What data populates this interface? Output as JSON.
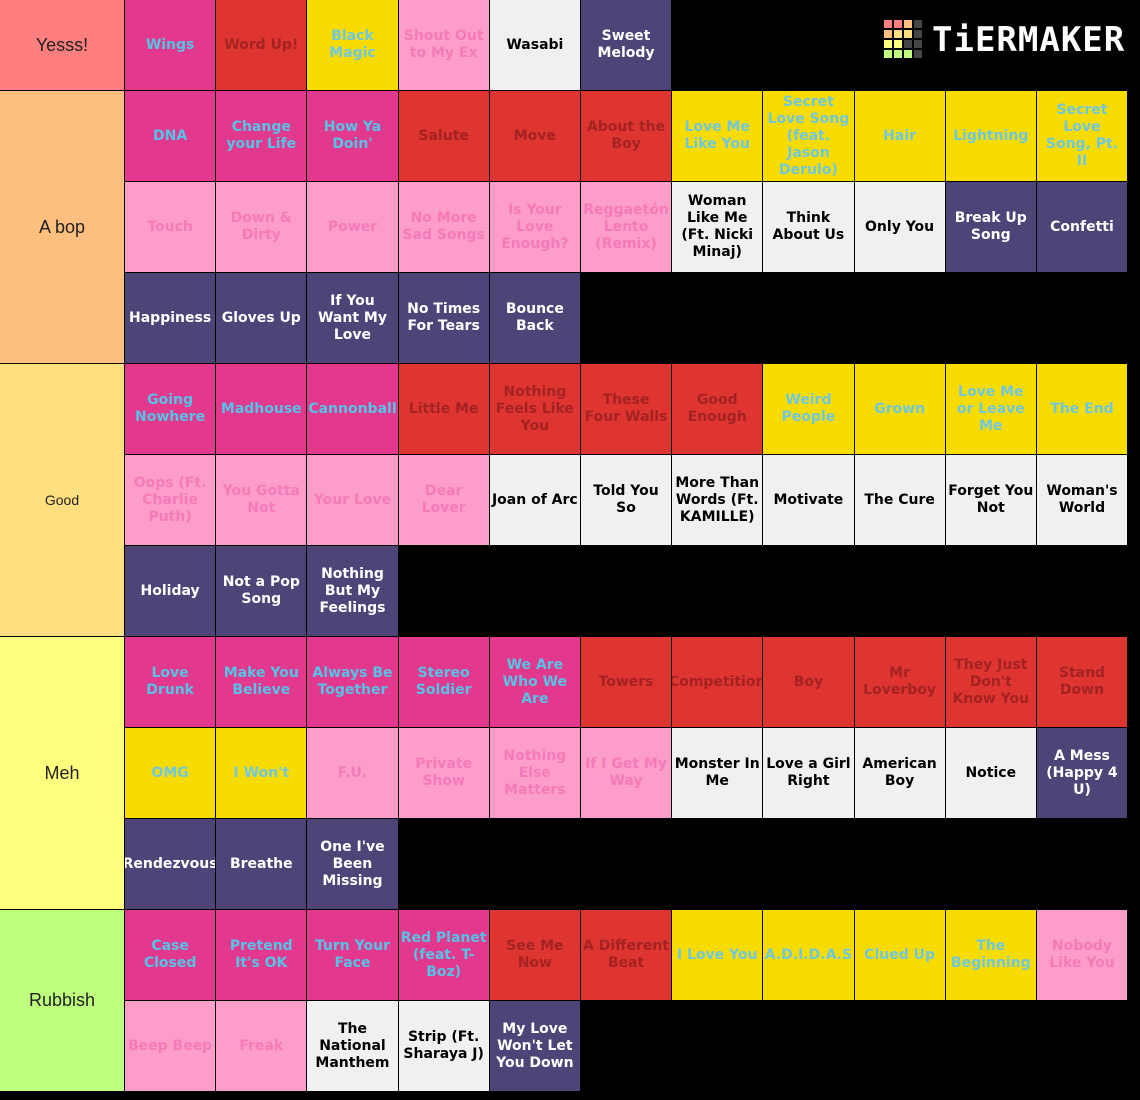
{
  "logo": "TiERMAKER",
  "tiers": [
    {
      "label": "Yesss!",
      "color": "#ff7f7f",
      "items": [
        {
          "text": "Wings",
          "color": "#e2398e"
        },
        {
          "text": "Word Up!",
          "color": "#de3530"
        },
        {
          "text": "Black Magic",
          "color": "#f8dc00"
        },
        {
          "text": "Shout Out to My Ex",
          "color": "#fd9dc9"
        },
        {
          "text": "Wasabi",
          "color": "#f0f0f0"
        },
        {
          "text": "Sweet Melody",
          "color": "#4f4478"
        }
      ]
    },
    {
      "label": "A bop",
      "color": "#ffbf7f",
      "items": [
        {
          "text": "DNA",
          "color": "#e2398e"
        },
        {
          "text": "Change your Life",
          "color": "#e2398e"
        },
        {
          "text": "How Ya Doin'",
          "color": "#e2398e"
        },
        {
          "text": "Salute",
          "color": "#de3530"
        },
        {
          "text": "Move",
          "color": "#de3530"
        },
        {
          "text": "About the Boy",
          "color": "#de3530"
        },
        {
          "text": "Love Me Like You",
          "color": "#f8dc00"
        },
        {
          "text": "Secret Love Song (feat. Jason Derulo)",
          "color": "#f8dc00"
        },
        {
          "text": "Hair",
          "color": "#f8dc00"
        },
        {
          "text": "Lightning",
          "color": "#f8dc00"
        },
        {
          "text": "Secret Love Song, Pt. II",
          "color": "#f8dc00"
        },
        {
          "text": "Touch",
          "color": "#fd9dc9"
        },
        {
          "text": "Down & Dirty",
          "color": "#fd9dc9"
        },
        {
          "text": "Power",
          "color": "#fd9dc9"
        },
        {
          "text": "No More Sad Songs",
          "color": "#fd9dc9"
        },
        {
          "text": "Is Your Love Enough?",
          "color": "#fd9dc9"
        },
        {
          "text": "Reggaetón Lento (Remix)",
          "color": "#fd9dc9"
        },
        {
          "text": "Woman Like Me (Ft. Nicki Minaj)",
          "color": "#f0f0f0"
        },
        {
          "text": "Think About Us",
          "color": "#f0f0f0"
        },
        {
          "text": "Only You",
          "color": "#f0f0f0"
        },
        {
          "text": "Break Up Song",
          "color": "#4f4478"
        },
        {
          "text": "Confetti",
          "color": "#4f4478"
        },
        {
          "text": "Happiness",
          "color": "#4f4478"
        },
        {
          "text": "Gloves Up",
          "color": "#4f4478"
        },
        {
          "text": "If You Want My Love",
          "color": "#4f4478"
        },
        {
          "text": "No Times For Tears",
          "color": "#4f4478"
        },
        {
          "text": "Bounce Back",
          "color": "#4f4478"
        }
      ]
    },
    {
      "label": "Good",
      "color": "#ffdf7f",
      "items": [
        {
          "text": "Going Nowhere",
          "color": "#e2398e"
        },
        {
          "text": "Madhouse",
          "color": "#e2398e"
        },
        {
          "text": "Cannonball",
          "color": "#e2398e"
        },
        {
          "text": "Little Me",
          "color": "#de3530"
        },
        {
          "text": "Nothing Feels Like You",
          "color": "#de3530"
        },
        {
          "text": "These Four Walls",
          "color": "#de3530"
        },
        {
          "text": "Good Enough",
          "color": "#de3530"
        },
        {
          "text": "Weird People",
          "color": "#f8dc00"
        },
        {
          "text": "Grown",
          "color": "#f8dc00"
        },
        {
          "text": "Love Me or Leave Me",
          "color": "#f8dc00"
        },
        {
          "text": "The End",
          "color": "#f8dc00"
        },
        {
          "text": "Oops (Ft. Charlie Puth)",
          "color": "#fd9dc9"
        },
        {
          "text": "You Gotta Not",
          "color": "#fd9dc9"
        },
        {
          "text": "Your Love",
          "color": "#fd9dc9"
        },
        {
          "text": "Dear Lover",
          "color": "#fd9dc9"
        },
        {
          "text": "Joan of Arc",
          "color": "#f0f0f0"
        },
        {
          "text": "Told You So",
          "color": "#f0f0f0"
        },
        {
          "text": "More Than Words (Ft. KAMILLE)",
          "color": "#f0f0f0"
        },
        {
          "text": "Motivate",
          "color": "#f0f0f0"
        },
        {
          "text": "The Cure",
          "color": "#f0f0f0"
        },
        {
          "text": "Forget You Not",
          "color": "#f0f0f0"
        },
        {
          "text": "Woman's World",
          "color": "#f0f0f0"
        },
        {
          "text": "Holiday",
          "color": "#4f4478"
        },
        {
          "text": "Not a Pop Song",
          "color": "#4f4478"
        },
        {
          "text": "Nothing But My Feelings",
          "color": "#4f4478"
        }
      ]
    },
    {
      "label": "Meh",
      "color": "#ffff7f",
      "items": [
        {
          "text": "Love Drunk",
          "color": "#e2398e"
        },
        {
          "text": "Make You Believe",
          "color": "#e2398e"
        },
        {
          "text": "Always Be Together",
          "color": "#e2398e"
        },
        {
          "text": "Stereo Soldier",
          "color": "#e2398e"
        },
        {
          "text": "We Are Who We Are",
          "color": "#e2398e"
        },
        {
          "text": "Towers",
          "color": "#de3530"
        },
        {
          "text": "Competition",
          "color": "#de3530"
        },
        {
          "text": "Boy",
          "color": "#de3530"
        },
        {
          "text": "Mr Loverboy",
          "color": "#de3530"
        },
        {
          "text": "They Just Don't Know You",
          "color": "#de3530"
        },
        {
          "text": "Stand Down",
          "color": "#de3530"
        },
        {
          "text": "OMG",
          "color": "#f8dc00"
        },
        {
          "text": "I Won't",
          "color": "#f8dc00"
        },
        {
          "text": "F.U.",
          "color": "#fd9dc9"
        },
        {
          "text": "Private Show",
          "color": "#fd9dc9"
        },
        {
          "text": "Nothing Else Matters",
          "color": "#fd9dc9"
        },
        {
          "text": "If I Get My Way",
          "color": "#fd9dc9"
        },
        {
          "text": "Monster In Me",
          "color": "#f0f0f0"
        },
        {
          "text": "Love a Girl Right",
          "color": "#f0f0f0"
        },
        {
          "text": "American Boy",
          "color": "#f0f0f0"
        },
        {
          "text": "Notice",
          "color": "#f0f0f0"
        },
        {
          "text": "A Mess (Happy 4 U)",
          "color": "#4f4478"
        },
        {
          "text": "Rendezvous",
          "color": "#4f4478"
        },
        {
          "text": "Breathe",
          "color": "#4f4478"
        },
        {
          "text": "One I've Been Missing",
          "color": "#4f4478"
        }
      ]
    },
    {
      "label": "Rubbish",
      "color": "#bfff7f",
      "items": [
        {
          "text": "Case Closed",
          "color": "#e2398e"
        },
        {
          "text": "Pretend It's OK",
          "color": "#e2398e"
        },
        {
          "text": "Turn Your Face",
          "color": "#e2398e"
        },
        {
          "text": "Red Planet (feat. T-Boz)",
          "color": "#e2398e"
        },
        {
          "text": "See Me Now",
          "color": "#de3530"
        },
        {
          "text": "A Different Beat",
          "color": "#de3530"
        },
        {
          "text": "I Love You",
          "color": "#f8dc00"
        },
        {
          "text": "A.D.I.D.A.S",
          "color": "#f8dc00"
        },
        {
          "text": "Clued Up",
          "color": "#f8dc00"
        },
        {
          "text": "The Beginning",
          "color": "#f8dc00"
        },
        {
          "text": "Nobody Like You",
          "color": "#fd9dc9"
        },
        {
          "text": "Beep Beep",
          "color": "#fd9dc9"
        },
        {
          "text": "Freak",
          "color": "#fd9dc9"
        },
        {
          "text": "The National Manthem",
          "color": "#f0f0f0"
        },
        {
          "text": "Strip (Ft. Sharaya J)",
          "color": "#f0f0f0"
        },
        {
          "text": "My Love Won't Let You Down",
          "color": "#4f4478"
        }
      ]
    }
  ]
}
